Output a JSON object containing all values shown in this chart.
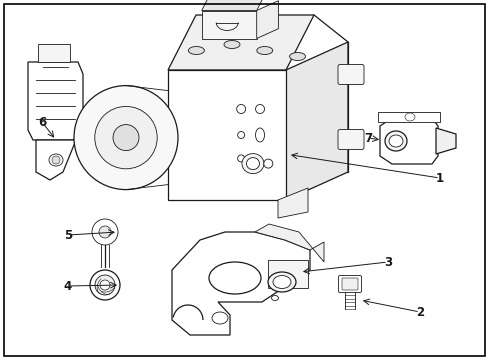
{
  "background_color": "#ffffff",
  "border_color": "#000000",
  "line_color": "#1a1a1a",
  "label_color": "#000000",
  "fig_width": 4.89,
  "fig_height": 3.6,
  "dpi": 100
}
